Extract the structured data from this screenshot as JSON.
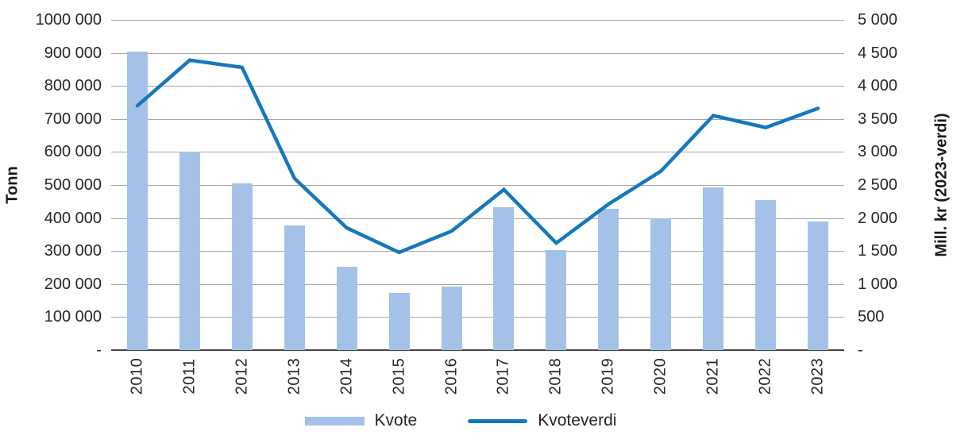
{
  "chart_data": {
    "type": "bar+line",
    "title": "",
    "categories": [
      "2010",
      "2011",
      "2012",
      "2013",
      "2014",
      "2015",
      "2016",
      "2017",
      "2018",
      "2019",
      "2020",
      "2021",
      "2022",
      "2023"
    ],
    "series": [
      {
        "name": "Kvote",
        "type": "bar",
        "axis": "left",
        "unit": "Tonn",
        "values": [
          905000,
          600000,
          505000,
          378000,
          252000,
          172000,
          193000,
          432000,
          303000,
          429000,
          398000,
          494000,
          455000,
          389000
        ]
      },
      {
        "name": "Kvoteverdi",
        "type": "line",
        "axis": "right",
        "unit": "Mill. kr (2023-verdi)",
        "values": [
          3700,
          4390,
          4280,
          2600,
          1850,
          1480,
          1800,
          2430,
          1620,
          2210,
          2710,
          3550,
          3370,
          3660
        ]
      }
    ],
    "left_axis": {
      "label": "Tonn",
      "min": 0,
      "max": 1000000,
      "tick_step": 100000,
      "tick_labels": [
        "1000 000",
        "900 000",
        "800 000",
        "700 000",
        "600 000",
        "500 000",
        "400 000",
        "300 000",
        "200 000",
        "100 000",
        "-"
      ]
    },
    "right_axis": {
      "label": "Mill. kr (2023-verdi)",
      "min": 0,
      "max": 5000,
      "tick_step": 500,
      "tick_labels": [
        "5 000",
        "4 500",
        "4 000",
        "3 500",
        "3 000",
        "2 500",
        "2 000",
        "1 500",
        "1 000",
        "500",
        "-"
      ]
    },
    "legend": {
      "position": "bottom",
      "items": [
        {
          "label": "Kvote",
          "marker": "bar-swatch"
        },
        {
          "label": "Kvoteverdi",
          "marker": "line-swatch"
        }
      ]
    },
    "grid": true,
    "colors": {
      "bar": "#a4c2e8",
      "line": "#1578be",
      "gridline": "#a6a6a6",
      "axis_line": "#454545",
      "text": "#262626"
    }
  }
}
